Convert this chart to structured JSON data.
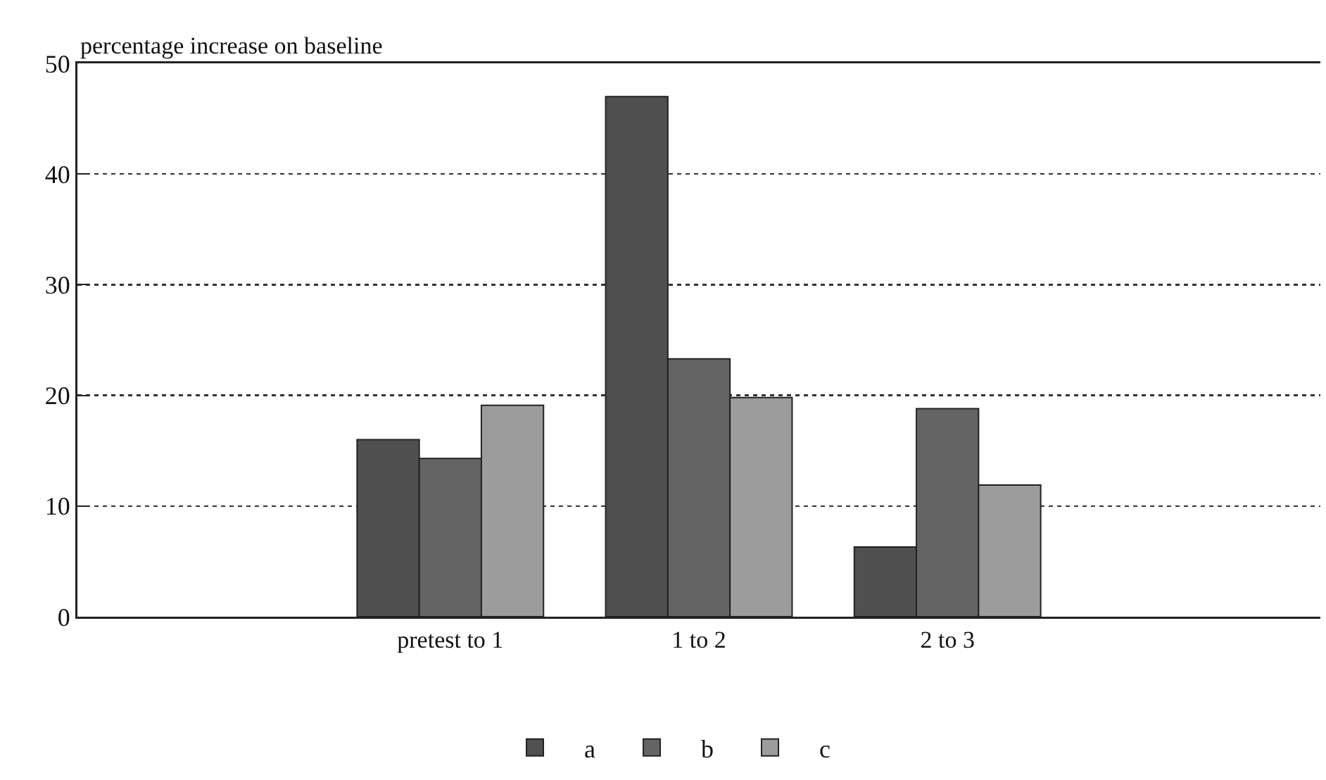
{
  "chart_data": {
    "type": "bar",
    "ylabel": "percentage increase on baseline",
    "categories": [
      null,
      "pretest to 1",
      "1 to 2",
      "2 to 3",
      null
    ],
    "series": [
      {
        "name": "a",
        "color": "#505050",
        "values": [
          null,
          16,
          47,
          6.3,
          null
        ]
      },
      {
        "name": "b",
        "color": "#646464",
        "values": [
          null,
          14.3,
          23.3,
          18.8,
          null
        ]
      },
      {
        "name": "c",
        "color": "#9c9c9c",
        "values": [
          null,
          19.1,
          19.8,
          11.9,
          null
        ]
      }
    ],
    "ylim": [
      0,
      50
    ],
    "yticks": [
      0,
      10,
      20,
      30,
      40,
      50
    ],
    "grid": "y",
    "legend": "bottom"
  }
}
